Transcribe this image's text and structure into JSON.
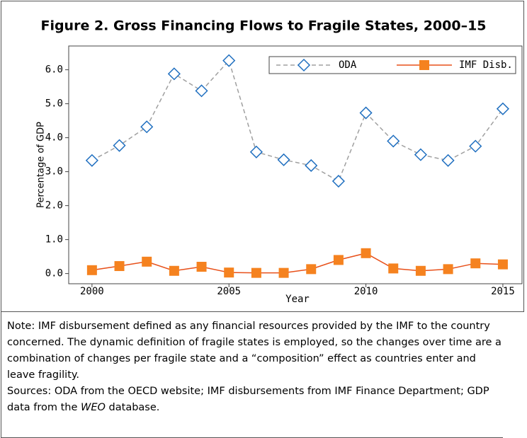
{
  "chart_data": {
    "type": "line",
    "title": "Figure 2. Gross Financing Flows to Fragile States, 2000–15",
    "x_label": "Year",
    "y_label": "Percentage of GDP",
    "x": [
      2000,
      2001,
      2002,
      2003,
      2004,
      2005,
      2006,
      2007,
      2008,
      2009,
      2010,
      2011,
      2012,
      2013,
      2014,
      2015
    ],
    "series": [
      {
        "name": "ODA",
        "color": "#1f6fc0",
        "line_color": "#a0a0a0",
        "marker": "diamond",
        "dashed": true,
        "values": [
          3.33,
          3.77,
          4.32,
          5.88,
          5.38,
          6.27,
          3.58,
          3.35,
          3.18,
          2.72,
          4.73,
          3.9,
          3.5,
          3.33,
          3.75,
          4.85
        ]
      },
      {
        "name": "IMF Disb.",
        "color": "#f5821f",
        "line_color": "#e8501a",
        "marker": "square",
        "dashed": false,
        "values": [
          0.1,
          0.22,
          0.35,
          0.08,
          0.2,
          0.03,
          0.02,
          0.02,
          0.13,
          0.4,
          0.6,
          0.15,
          0.08,
          0.13,
          0.3,
          0.27
        ]
      }
    ],
    "xlim": [
      1999.15,
      2015.7
    ],
    "ylim": [
      -0.3,
      6.7
    ],
    "xticks": [
      2000,
      2005,
      2010,
      2015
    ],
    "yticks": [
      {
        "value": 0,
        "label": "0.0"
      },
      {
        "value": 1,
        "label": "1.0"
      },
      {
        "value": 2,
        "label": "2.0"
      },
      {
        "value": 3,
        "label": "3.0"
      },
      {
        "value": 4,
        "label": "4.0"
      },
      {
        "value": 5,
        "label": "5.0"
      },
      {
        "value": 6,
        "label": "6.0"
      }
    ],
    "legend": "top-right",
    "grid": false
  },
  "note": "Note: IMF disbursement defined as any financial resources provided by the IMF to the country concerned. The dynamic definition of fragile states is employed, so the changes over time are a combination of changes per fragile state and a “composition” effect as countries enter and leave fragility.",
  "sources": {
    "before": "Sources: ODA from the OECD website; IMF disbursements from IMF Finance Department; GDP data from the ",
    "italic": "WEO",
    "after": " database."
  }
}
